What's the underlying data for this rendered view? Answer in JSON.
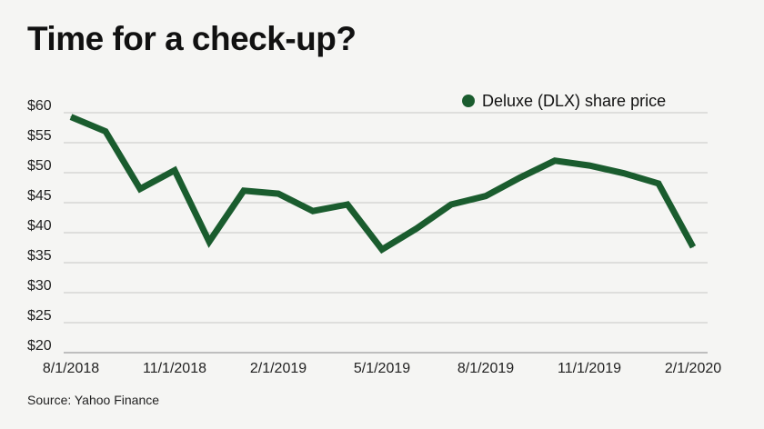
{
  "title": "Time for a check-up?",
  "source": "Source: Yahoo Finance",
  "colors": {
    "line": "#1a5c2e",
    "grid": "#c8c8c6",
    "background": "#f5f5f3"
  },
  "chart_data": {
    "type": "line",
    "title": "Time for a check-up?",
    "xlabel": "",
    "ylabel": "",
    "ylim": [
      20,
      60
    ],
    "grid": true,
    "legend_position": "top-right",
    "y_tick_labels": [
      "$60",
      "$55",
      "$50",
      "$45",
      "$40",
      "$35",
      "$30",
      "$25",
      "$20"
    ],
    "y_tick_values": [
      60,
      55,
      50,
      45,
      40,
      35,
      30,
      25,
      20
    ],
    "x_tick_labels": [
      "8/1/2018",
      "11/1/2018",
      "2/1/2019",
      "5/1/2019",
      "8/1/2019",
      "11/1/2019",
      "2/1/2020"
    ],
    "x": [
      "8/1/2018",
      "9/1/2018",
      "10/1/2018",
      "11/1/2018",
      "12/1/2018",
      "1/1/2019",
      "2/1/2019",
      "3/1/2019",
      "4/1/2019",
      "5/1/2019",
      "6/1/2019",
      "7/1/2019",
      "8/1/2019",
      "9/1/2019",
      "10/1/2019",
      "11/1/2019",
      "12/1/2019",
      "1/1/2020",
      "2/1/2020"
    ],
    "series": [
      {
        "name": "Deluxe (DLX) share price",
        "values": [
          59.3,
          56.9,
          47.3,
          50.4,
          38.5,
          47.0,
          46.5,
          43.6,
          44.7,
          37.2,
          40.7,
          44.7,
          46.1,
          49.2,
          52.0,
          51.2,
          49.9,
          48.2,
          37.6
        ]
      }
    ]
  }
}
